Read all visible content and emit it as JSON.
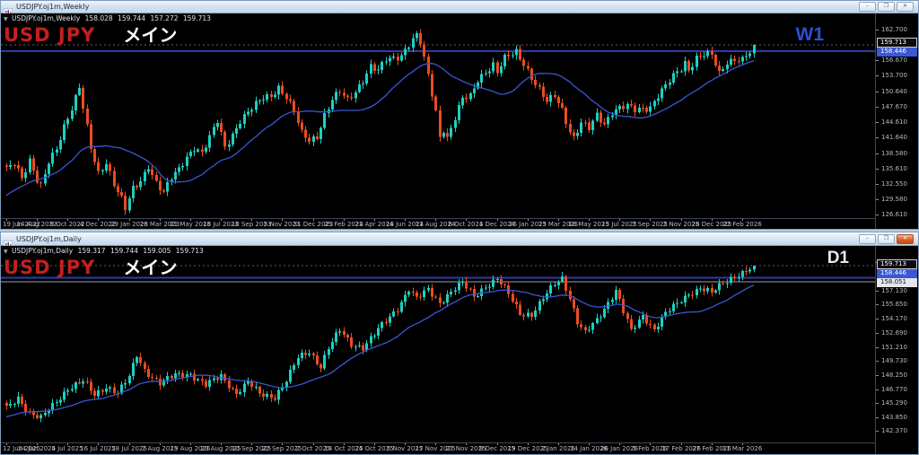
{
  "desktop": {
    "bg_color": "#b9cde4"
  },
  "windows": [
    {
      "title": "USDJPY.oj1m,Weekly",
      "active": false,
      "controls": {
        "minimize": "–",
        "restore": "❐",
        "close": "✕"
      },
      "info": {
        "symbol": "USDJPY.oj1m,Weekly",
        "open": "158.028",
        "high": "159.744",
        "low": "157.272",
        "close": "159.713"
      },
      "watermark": {
        "symbol": "USD JPY",
        "label": "メイン",
        "symbol_color": "#c41f1f",
        "label_color": "#ffffff"
      },
      "period_label": "W1",
      "period_label_color": "#2e4cd8",
      "chart_data": {
        "type": "candlestick",
        "title": "USDJPY.oj1m,Weekly",
        "timeframe": "W1",
        "grid": false,
        "background": "#000000",
        "bull_color": "#1ecfc0",
        "bear_color": "#ea4c20",
        "axis_text_color": "#b4bbc4",
        "y_ticks": [
          "162.700",
          "156.670",
          "153.700",
          "150.640",
          "147.670",
          "144.610",
          "141.640",
          "138.580",
          "135.610",
          "132.550",
          "129.580",
          "126.610"
        ],
        "x_ticks": [
          "19 Jun 2022",
          "14 Aug 2022",
          "9 Oct 2022",
          "4 Dec 2022",
          "29 Jan 2023",
          "26 Mar 2023",
          "21 May 2023",
          "16 Jul 2023",
          "10 Sep 2023",
          "5 Nov 2023",
          "31 Dec 2023",
          "25 Feb 2024",
          "21 Apr 2024",
          "16 Jun 2024",
          "11 Aug 2024",
          "6 Oct 2024",
          "1 Dec 2024",
          "26 Jan 2025",
          "23 Mar 2025",
          "18 May 2025",
          "13 Jul 2025",
          "7 Sep 2025",
          "2 Nov 2025",
          "28 Dec 2025",
          "22 Feb 2026"
        ],
        "candles_per_tick": 8,
        "candle_count": 196,
        "close_keyframes": [
          [
            0,
            135.2
          ],
          [
            2,
            136.8
          ],
          [
            4,
            134.0
          ],
          [
            6,
            137.4
          ],
          [
            8,
            133.2
          ],
          [
            9,
            131.9
          ],
          [
            11,
            136.6
          ],
          [
            13,
            139.5
          ],
          [
            15,
            144.0
          ],
          [
            17,
            147.5
          ],
          [
            19,
            151.4
          ],
          [
            20,
            147.3
          ],
          [
            22,
            139.4
          ],
          [
            24,
            134.6
          ],
          [
            26,
            137.0
          ],
          [
            28,
            132.8
          ],
          [
            30,
            129.6
          ],
          [
            31,
            127.6
          ],
          [
            33,
            131.5
          ],
          [
            35,
            133.2
          ],
          [
            37,
            136.3
          ],
          [
            39,
            133.0
          ],
          [
            41,
            130.8
          ],
          [
            43,
            133.6
          ],
          [
            45,
            135.4
          ],
          [
            47,
            138.0
          ],
          [
            49,
            139.8
          ],
          [
            51,
            138.6
          ],
          [
            53,
            141.5
          ],
          [
            55,
            144.8
          ],
          [
            57,
            139.8
          ],
          [
            59,
            142.3
          ],
          [
            61,
            145.0
          ],
          [
            63,
            146.4
          ],
          [
            65,
            147.9
          ],
          [
            67,
            149.4
          ],
          [
            69,
            149.9
          ],
          [
            71,
            151.5
          ],
          [
            73,
            149.4
          ],
          [
            75,
            146.6
          ],
          [
            77,
            142.4
          ],
          [
            79,
            141.2
          ],
          [
            81,
            142.0
          ],
          [
            83,
            146.0
          ],
          [
            85,
            148.8
          ],
          [
            87,
            150.4
          ],
          [
            89,
            149.0
          ],
          [
            91,
            150.8
          ],
          [
            93,
            152.9
          ],
          [
            95,
            155.4
          ],
          [
            97,
            154.4
          ],
          [
            99,
            156.8
          ],
          [
            101,
            157.2
          ],
          [
            103,
            157.8
          ],
          [
            105,
            159.8
          ],
          [
            107,
            161.4
          ],
          [
            108,
            160.0
          ],
          [
            110,
            153.6
          ],
          [
            112,
            146.8
          ],
          [
            113,
            141.9
          ],
          [
            114,
            143.4
          ],
          [
            115,
            141.6
          ],
          [
            117,
            145.4
          ],
          [
            119,
            149.0
          ],
          [
            121,
            149.6
          ],
          [
            123,
            153.0
          ],
          [
            125,
            154.6
          ],
          [
            127,
            155.8
          ],
          [
            128,
            154.2
          ],
          [
            130,
            156.9
          ],
          [
            133,
            158.4
          ],
          [
            135,
            156.2
          ],
          [
            137,
            153.4
          ],
          [
            139,
            150.8
          ],
          [
            141,
            148.4
          ],
          [
            143,
            149.8
          ],
          [
            145,
            147.2
          ],
          [
            147,
            143.0
          ],
          [
            148,
            141.6
          ],
          [
            150,
            144.4
          ],
          [
            152,
            143.2
          ],
          [
            154,
            146.0
          ],
          [
            156,
            144.4
          ],
          [
            158,
            146.8
          ],
          [
            160,
            147.4
          ],
          [
            162,
            147.6
          ],
          [
            164,
            146.9
          ],
          [
            166,
            147.3
          ],
          [
            168,
            147.7
          ],
          [
            170,
            150.0
          ],
          [
            172,
            151.6
          ],
          [
            174,
            153.4
          ],
          [
            176,
            155.0
          ],
          [
            177,
            156.2
          ],
          [
            178,
            155.0
          ],
          [
            180,
            157.4
          ],
          [
            182,
            157.9
          ],
          [
            184,
            157.5
          ],
          [
            186,
            153.9
          ],
          [
            188,
            156.4
          ],
          [
            190,
            157.1
          ],
          [
            192,
            156.9
          ],
          [
            194,
            158.028
          ],
          [
            195,
            159.713
          ]
        ],
        "hlines": [
          {
            "price": 158.446,
            "color": "#2b3da8",
            "width": 2,
            "dash": false
          },
          {
            "price": 159.713,
            "color": "#596270",
            "width": 1,
            "dash": true
          }
        ],
        "ma": {
          "period": 21,
          "color": "#3d55d4",
          "lead_in": [
            121.0,
            134.5
          ]
        },
        "price_boxes": [
          {
            "value": "159.713",
            "price": 159.713,
            "style": "last"
          },
          {
            "value": "158.446",
            "price": 158.446,
            "style": "bid"
          }
        ]
      }
    },
    {
      "title": "USDJPY.oj1m,Daily",
      "active": true,
      "controls": {
        "minimize": "–",
        "restore": "❐",
        "close": "✕"
      },
      "info": {
        "symbol": "USDJPY.oj1m,Daily",
        "open": "159.317",
        "high": "159.744",
        "low": "159.005",
        "close": "159.713"
      },
      "watermark": {
        "symbol": "USD JPY",
        "label": "メイン",
        "symbol_color": "#c41f1f",
        "label_color": "#ffffff"
      },
      "period_label": "D1",
      "period_label_color": "#e6e9ee",
      "chart_data": {
        "type": "candlestick",
        "title": "USDJPY.oj1m,Daily",
        "timeframe": "D1",
        "grid": false,
        "background": "#000000",
        "bull_color": "#1ecfc0",
        "bear_color": "#ea4c20",
        "axis_text_color": "#b4bbc4",
        "y_ticks": [
          "160.090",
          "157.130",
          "155.650",
          "154.170",
          "152.690",
          "151.210",
          "149.730",
          "148.250",
          "146.770",
          "145.290",
          "143.850",
          "142.370"
        ],
        "x_ticks": [
          "12 Jun 2025",
          "24 Jun 2025",
          "4 Jul 2025",
          "16 Jul 2025",
          "28 Jul 2025",
          "7 Aug 2025",
          "19 Aug 2025",
          "29 Aug 2025",
          "10 Sep 2025",
          "22 Sep 2025",
          "2 Oct 2025",
          "14 Oct 2025",
          "24 Oct 2025",
          "5 Nov 2025",
          "17 Nov 2025",
          "27 Nov 2025",
          "9 Dec 2025",
          "19 Dec 2025",
          "2 Jan 2026",
          "14 Jan 2026",
          "26 Jan 2026",
          "5 Feb 2026",
          "17 Feb 2026",
          "27 Feb 2026",
          "11 Mar 2026"
        ],
        "candles_per_tick": 8,
        "candle_count": 196,
        "close_keyframes": [
          [
            0,
            144.7
          ],
          [
            3,
            145.9
          ],
          [
            6,
            144.3
          ],
          [
            9,
            143.7
          ],
          [
            12,
            145.0
          ],
          [
            16,
            146.9
          ],
          [
            20,
            147.6
          ],
          [
            23,
            146.1
          ],
          [
            26,
            147.1
          ],
          [
            29,
            146.4
          ],
          [
            32,
            148.0
          ],
          [
            34,
            150.3
          ],
          [
            36,
            148.8
          ],
          [
            40,
            147.4
          ],
          [
            44,
            148.2
          ],
          [
            48,
            148.4
          ],
          [
            52,
            147.2
          ],
          [
            56,
            148.1
          ],
          [
            60,
            146.4
          ],
          [
            63,
            147.5
          ],
          [
            66,
            146.2
          ],
          [
            70,
            146.0
          ],
          [
            73,
            147.7
          ],
          [
            76,
            150.0
          ],
          [
            79,
            150.7
          ],
          [
            82,
            149.2
          ],
          [
            84,
            151.1
          ],
          [
            87,
            152.9
          ],
          [
            90,
            151.5
          ],
          [
            93,
            151.2
          ],
          [
            96,
            152.5
          ],
          [
            99,
            153.9
          ],
          [
            102,
            155.3
          ],
          [
            105,
            157.3
          ],
          [
            107,
            156.2
          ],
          [
            110,
            157.2
          ],
          [
            113,
            155.9
          ],
          [
            116,
            157.0
          ],
          [
            119,
            157.9
          ],
          [
            122,
            156.5
          ],
          [
            125,
            157.6
          ],
          [
            128,
            158.3
          ],
          [
            131,
            156.7
          ],
          [
            134,
            154.8
          ],
          [
            137,
            154.6
          ],
          [
            140,
            156.2
          ],
          [
            143,
            157.8
          ],
          [
            145,
            158.5
          ],
          [
            147,
            156.4
          ],
          [
            149,
            153.8
          ],
          [
            151,
            152.6
          ],
          [
            154,
            154.0
          ],
          [
            157,
            155.9
          ],
          [
            159,
            157.2
          ],
          [
            161,
            154.9
          ],
          [
            163,
            152.8
          ],
          [
            166,
            154.5
          ],
          [
            169,
            153.1
          ],
          [
            172,
            154.7
          ],
          [
            175,
            155.7
          ],
          [
            178,
            156.8
          ],
          [
            181,
            157.4
          ],
          [
            184,
            156.8
          ],
          [
            187,
            157.9
          ],
          [
            190,
            158.7
          ],
          [
            193,
            159.1
          ],
          [
            194,
            159.317
          ],
          [
            195,
            159.713
          ]
        ],
        "hlines": [
          {
            "price": 158.446,
            "color": "#2b3da8",
            "width": 2,
            "dash": false
          },
          {
            "price": 158.051,
            "color": "#9aa0a8",
            "width": 1,
            "dash": false
          },
          {
            "price": 159.713,
            "color": "#596270",
            "width": 1,
            "dash": true
          }
        ],
        "ma": {
          "period": 21,
          "color": "#3d55d4",
          "lead_in": [
            142.2,
            144.6
          ]
        },
        "price_boxes": [
          {
            "value": "159.713",
            "price": 159.713,
            "style": "last"
          },
          {
            "value": "158.446",
            "price": 158.446,
            "style": "bid"
          },
          {
            "value": "158.051",
            "price": 158.051,
            "style": "level"
          }
        ]
      }
    }
  ]
}
